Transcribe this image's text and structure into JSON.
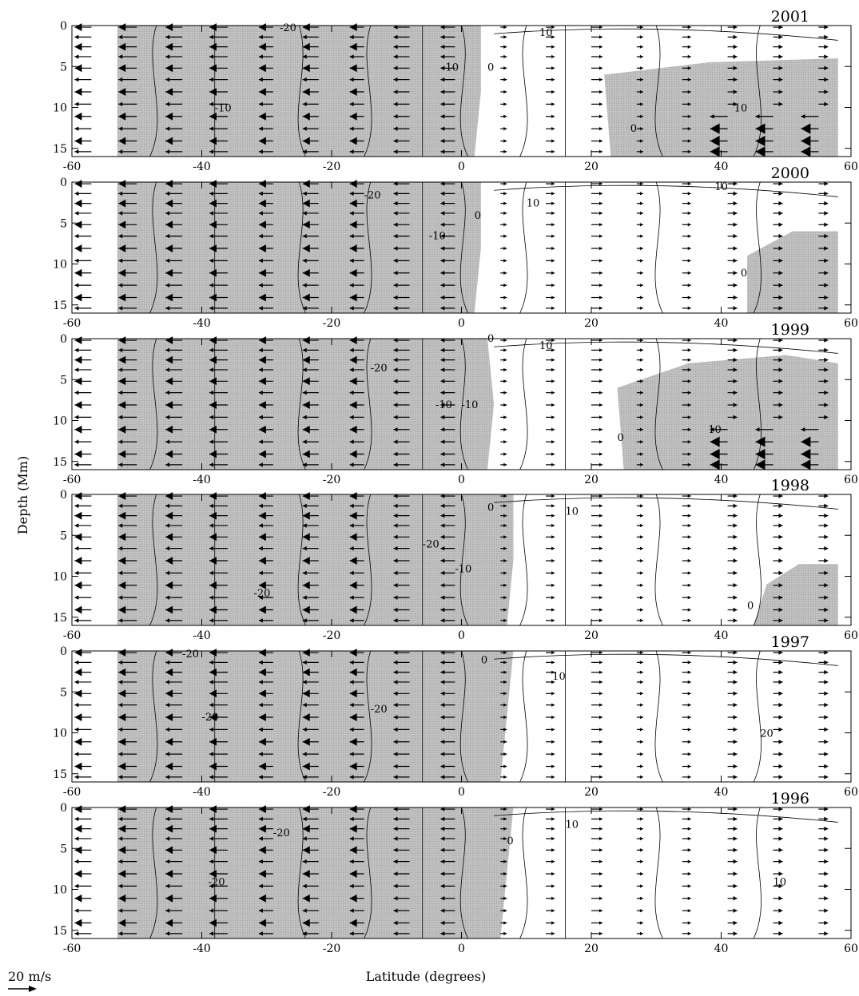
{
  "chart_data": {
    "type": "vector-contour",
    "xlabel": "Latitude (degrees)",
    "ylabel": "Depth (Mm)",
    "xlim": [
      -60,
      60
    ],
    "ylim": [
      0,
      16
    ],
    "x_ticks": [
      "-60",
      "-40",
      "-20",
      "0",
      "20",
      "40",
      "60"
    ],
    "y_ticks": [
      "0",
      "5",
      "10",
      "15"
    ],
    "scale_label": "20 m/s",
    "contour_units": "m/s",
    "grid": false,
    "negative_region_fill": "#b4b4b4",
    "panels": [
      {
        "year": "2001",
        "contour_labels": [
          "-20",
          "-10",
          "0",
          "-10",
          "10",
          "0",
          "10"
        ],
        "meridional_flow_sign_by_latitude": [
          {
            "lat": -55,
            "sign": "southward"
          },
          {
            "lat": -30,
            "sign": "southward"
          },
          {
            "lat": -5,
            "sign": "southward"
          },
          {
            "lat": 20,
            "sign": "northward"
          },
          {
            "lat": 45,
            "sign": "strong southward at depth"
          }
        ]
      },
      {
        "year": "2000",
        "contour_labels": [
          "-20",
          "-10",
          "0",
          "10",
          "10",
          "0"
        ],
        "meridional_flow_sign_by_latitude": [
          {
            "lat": -55,
            "sign": "southward"
          },
          {
            "lat": -30,
            "sign": "southward"
          },
          {
            "lat": 20,
            "sign": "northward"
          },
          {
            "lat": 50,
            "sign": "weak"
          }
        ]
      },
      {
        "year": "1999",
        "contour_labels": [
          "-20",
          "-10",
          "0",
          "10",
          "0",
          "10",
          "-10"
        ],
        "meridional_flow_sign_by_latitude": [
          {
            "lat": -55,
            "sign": "southward"
          },
          {
            "lat": -30,
            "sign": "southward"
          },
          {
            "lat": 20,
            "sign": "northward"
          },
          {
            "lat": 45,
            "sign": "strong southward at depth"
          }
        ]
      },
      {
        "year": "1998",
        "contour_labels": [
          "-20",
          "-20",
          "-10",
          "0",
          "10",
          "0"
        ],
        "meridional_flow_sign_by_latitude": [
          {
            "lat": -55,
            "sign": "southward"
          },
          {
            "lat": -25,
            "sign": "southward"
          },
          {
            "lat": 20,
            "sign": "northward"
          }
        ]
      },
      {
        "year": "1997",
        "contour_labels": [
          "-20",
          "-20",
          "-20",
          "0",
          "10",
          "20"
        ],
        "meridional_flow_sign_by_latitude": [
          {
            "lat": -55,
            "sign": "southward"
          },
          {
            "lat": -25,
            "sign": "southward"
          },
          {
            "lat": 20,
            "sign": "northward"
          },
          {
            "lat": 55,
            "sign": "northward"
          }
        ]
      },
      {
        "year": "1996",
        "contour_labels": [
          "-20",
          "-20",
          "0",
          "10",
          "10"
        ],
        "meridional_flow_sign_by_latitude": [
          {
            "lat": -55,
            "sign": "southward"
          },
          {
            "lat": -25,
            "sign": "southward"
          },
          {
            "lat": 20,
            "sign": "northward"
          }
        ]
      }
    ]
  }
}
